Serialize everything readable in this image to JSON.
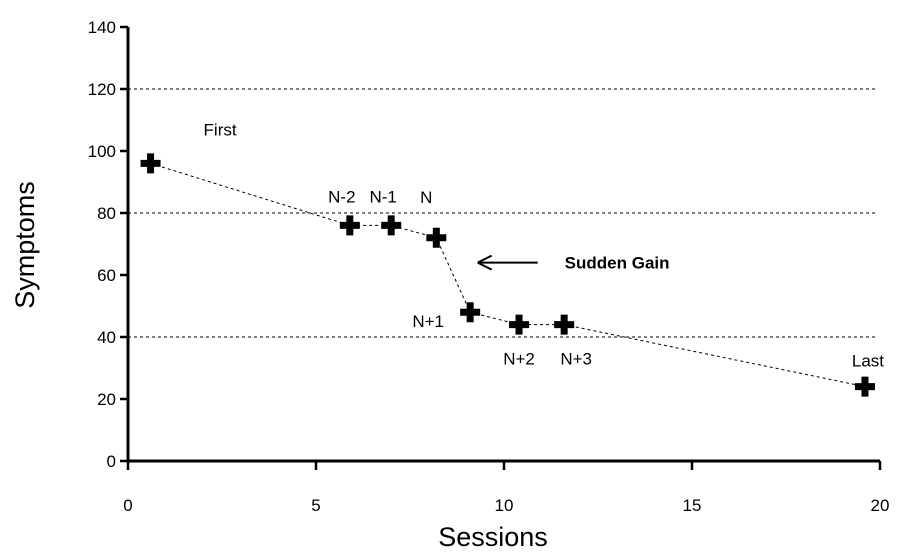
{
  "chart_data": {
    "type": "line",
    "xlabel": "Sessions",
    "ylabel": "Symptoms",
    "xlim": [
      0,
      20
    ],
    "ylim": [
      0,
      140
    ],
    "x_ticks": [
      0,
      5,
      10,
      15,
      20
    ],
    "y_ticks": [
      0,
      20,
      40,
      60,
      80,
      100,
      120,
      140
    ],
    "gridlines_y": [
      40,
      80,
      120
    ],
    "grid_style": "dashed",
    "marker": "plus",
    "series": [
      {
        "points": [
          {
            "x": 0.6,
            "y": 96,
            "label": "First"
          },
          {
            "x": 5.9,
            "y": 76,
            "label": "N-2"
          },
          {
            "x": 7.0,
            "y": 76,
            "label": "N-1"
          },
          {
            "x": 8.2,
            "y": 72,
            "label": "N"
          },
          {
            "x": 9.1,
            "y": 48,
            "label": "N+1"
          },
          {
            "x": 10.4,
            "y": 44,
            "label": "N+2"
          },
          {
            "x": 11.6,
            "y": 44,
            "label": "N+3"
          },
          {
            "x": 19.6,
            "y": 24,
            "label": "Last"
          }
        ]
      }
    ],
    "annotation": {
      "text": "Sudden Gain",
      "arrow": "left",
      "x": 9.3,
      "y": 64
    }
  }
}
